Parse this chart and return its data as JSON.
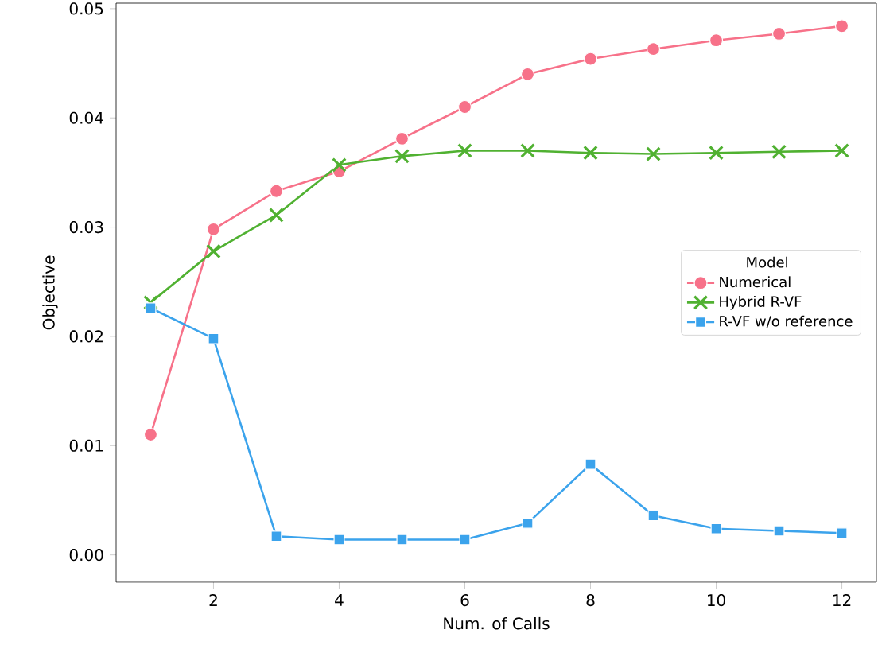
{
  "chart_data": {
    "type": "line",
    "xlabel": "Num. of Calls",
    "ylabel": "Objective",
    "legend_title": "Model",
    "legend": "center right",
    "grid": false,
    "x": [
      1,
      2,
      3,
      4,
      5,
      6,
      7,
      8,
      9,
      10,
      11,
      12
    ],
    "series": [
      {
        "name": "Numerical",
        "color": "#f77189",
        "marker": "circle",
        "values": [
          0.011,
          0.0298,
          0.0333,
          0.0351,
          0.0381,
          0.041,
          0.044,
          0.0454,
          0.0463,
          0.0471,
          0.0477,
          0.0484
        ]
      },
      {
        "name": "Hybrid R-VF",
        "color": "#50b131",
        "marker": "cross",
        "values": [
          0.0231,
          0.0278,
          0.0311,
          0.0357,
          0.0365,
          0.037,
          0.037,
          0.0368,
          0.0367,
          0.0368,
          0.0369,
          0.037
        ]
      },
      {
        "name": "R-VF w/o reference",
        "color": "#3ba3ec",
        "marker": "square",
        "values": [
          0.0226,
          0.0198,
          0.0017,
          0.0014,
          0.0014,
          0.0014,
          0.0029,
          0.0083,
          0.0036,
          0.0024,
          0.0022,
          0.002
        ]
      }
    ],
    "xlim": [
      0.45,
      12.55
    ],
    "xticks": [
      2,
      4,
      6,
      8,
      10,
      12
    ],
    "ylim": [
      -0.0025,
      0.0505
    ],
    "yticks": [
      {
        "value": 0,
        "label": "0.00"
      },
      {
        "value": 0.01,
        "label": "0.01"
      },
      {
        "value": 0.02,
        "label": "0.02"
      },
      {
        "value": 0.03,
        "label": "0.03"
      },
      {
        "value": 0.04,
        "label": "0.04"
      },
      {
        "value": 0.05,
        "label": "0.05"
      }
    ]
  }
}
